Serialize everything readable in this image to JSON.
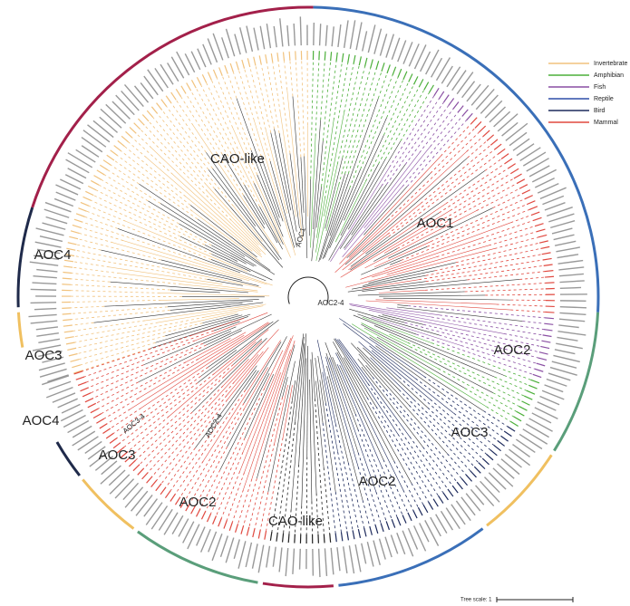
{
  "legend": [
    {
      "label": "Invertebrate",
      "color": "#f1c27d"
    },
    {
      "label": "Amphibian",
      "color": "#4caf3a"
    },
    {
      "label": "Fish",
      "color": "#8a4fa3"
    },
    {
      "label": "Reptile",
      "color": "#2f4fa8"
    },
    {
      "label": "Bird",
      "color": "#1d2a5c"
    },
    {
      "label": "Mammal",
      "color": "#e0483f"
    }
  ],
  "clades": [
    "CAO-like",
    "AOC1",
    "AOC2",
    "AOC3",
    "AOC2",
    "CAO-like",
    "AOC2",
    "AOC3",
    "AOC4",
    "AOC3",
    "AOC4"
  ],
  "branch_labels": [
    "AOC1",
    "AOC2-4",
    "AOC3-4",
    "AOC2-4"
  ],
  "tree_scale": "Tree scale: 1"
}
